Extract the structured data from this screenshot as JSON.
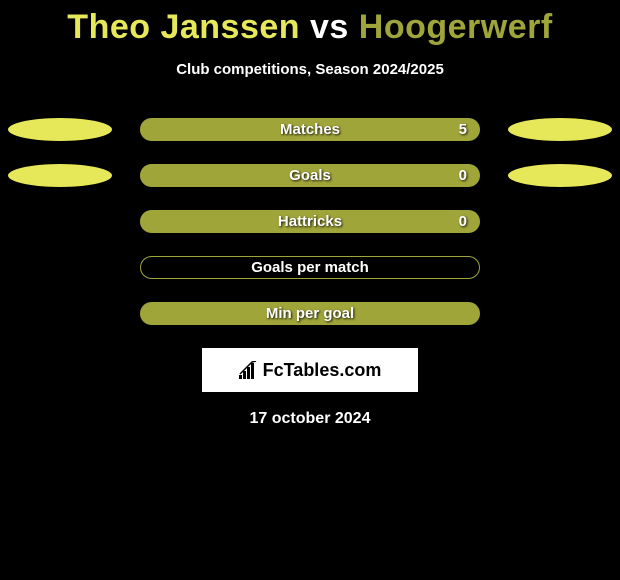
{
  "title": {
    "parts": [
      "Theo Janssen",
      " vs ",
      "Hoogerwerf"
    ],
    "colors": [
      "#e6e85a",
      "#ffffff",
      "#a0a53a"
    ]
  },
  "subtitle": "Club competitions, Season 2024/2025",
  "rows": [
    {
      "label": "Matches",
      "value": "5",
      "bar_bg": "#a0a53a",
      "bar_border": "#a0a53a",
      "left_ellipse": "#e6e85a",
      "right_ellipse": "#e6e85a",
      "show_value": true,
      "show_left": true,
      "show_right": true
    },
    {
      "label": "Goals",
      "value": "0",
      "bar_bg": "#a0a53a",
      "bar_border": "#a0a53a",
      "left_ellipse": "#e6e85a",
      "right_ellipse": "#e6e85a",
      "show_value": true,
      "show_left": true,
      "show_right": true
    },
    {
      "label": "Hattricks",
      "value": "0",
      "bar_bg": "#a0a53a",
      "bar_border": "#a0a53a",
      "left_ellipse": null,
      "right_ellipse": null,
      "show_value": true,
      "show_left": false,
      "show_right": false
    },
    {
      "label": "Goals per match",
      "value": "",
      "bar_bg": "transparent",
      "bar_border": "#a0a53a",
      "left_ellipse": null,
      "right_ellipse": null,
      "show_value": false,
      "show_left": false,
      "show_right": false
    },
    {
      "label": "Min per goal",
      "value": "",
      "bar_bg": "#a0a53a",
      "bar_border": "#a0a53a",
      "left_ellipse": null,
      "right_ellipse": null,
      "show_value": false,
      "show_left": false,
      "show_right": false
    }
  ],
  "logo_text": "FcTables.com",
  "date": "17 october 2024",
  "background_color": "#000000",
  "text_color": "#ffffff"
}
